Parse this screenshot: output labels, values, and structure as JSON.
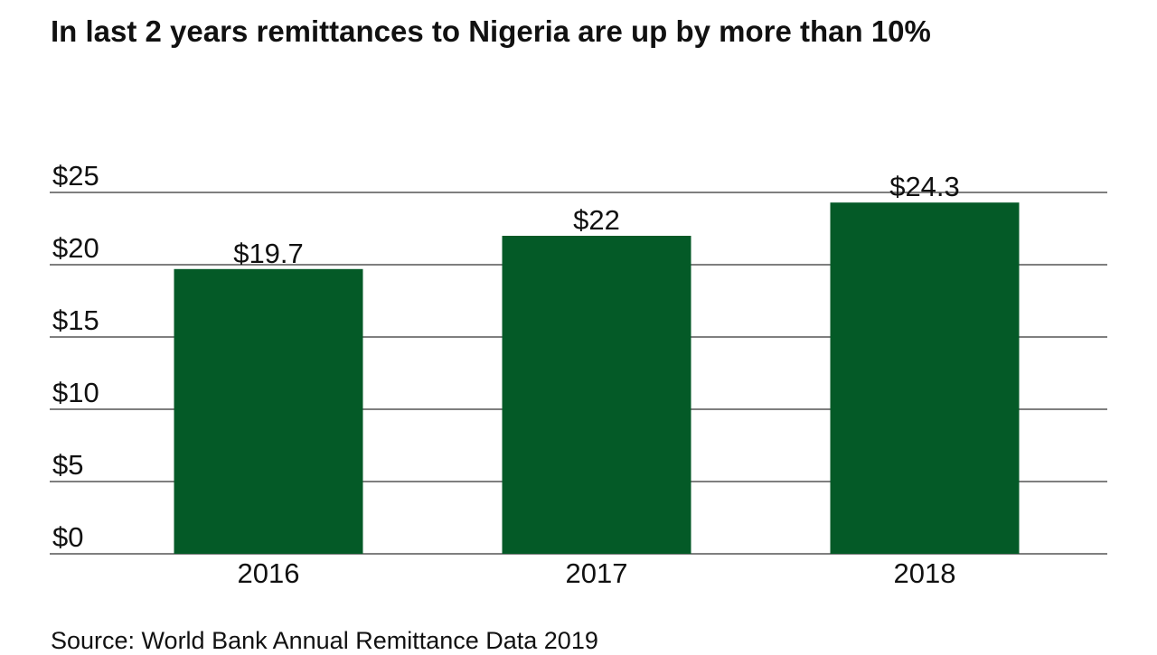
{
  "chart_data": {
    "type": "bar",
    "title": "In last 2 years remittances to Nigeria are up by more than 10%",
    "categories": [
      "2016",
      "2017",
      "2018"
    ],
    "values": [
      19.7,
      22,
      24.3
    ],
    "data_labels": [
      "$19.7",
      "$22",
      "$24.3"
    ],
    "yticks": [
      0,
      5,
      10,
      15,
      20,
      25
    ],
    "ytick_labels": [
      "$0",
      "$5",
      "$10",
      "$15",
      "$20",
      "$25"
    ],
    "ylim": [
      0,
      25
    ],
    "grid": true,
    "xlabel": "",
    "ylabel": "",
    "bar_color": "#045a27",
    "source": "Source: World Bank Annual Remittance Data 2019"
  }
}
